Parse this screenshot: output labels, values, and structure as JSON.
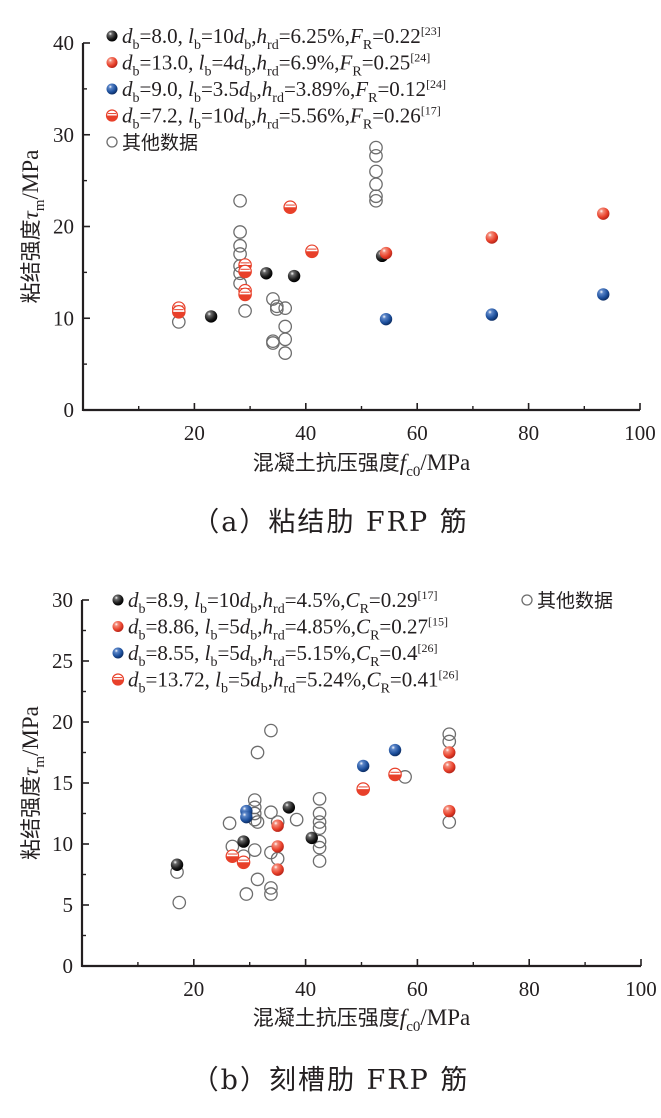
{
  "colors": {
    "black": "#1a1a1a",
    "red": "#e8402a",
    "blue": "#1c4f9c",
    "open": "#6d6d6d",
    "axis": "#231f20"
  },
  "chart_data": [
    {
      "type": "scatter",
      "id": "a",
      "caption": "（a）粘结肋 FRP 筋",
      "xlabel": "混凝土抗压强度f_c0/MPa",
      "xlabel_parts": {
        "main": "混凝土抗压强度",
        "var": "f",
        "sub": "c0",
        "unit": "/MPa"
      },
      "ylabel": "粘结强度τ_m/MPa",
      "ylabel_parts": {
        "main": "粘结强度",
        "var": "τ",
        "sub": "m",
        "unit": "/MPa"
      },
      "xlim": [
        0,
        100
      ],
      "ylim": [
        0,
        40
      ],
      "xticks": [
        20,
        40,
        60,
        80,
        100
      ],
      "xminor": [
        10,
        30,
        50,
        70,
        90
      ],
      "yticks": [
        0,
        10,
        20,
        30,
        40
      ],
      "yminor": [
        5,
        15,
        25,
        35
      ],
      "grid": false,
      "legend_position": "top-left",
      "series": [
        {
          "name": "d_b=8.0, l_b=10d_b, h_rd=6.25%, F_R=0.22[23]",
          "legend": {
            "d": "8.0",
            "l": "10",
            "h": "6.25%",
            "coef": "F",
            "coef_val": "0.22",
            "ref": "[23]"
          },
          "marker": "filled",
          "color_key": "black",
          "points": [
            [
              23.0,
              10.2
            ],
            [
              32.9,
              14.9
            ],
            [
              37.9,
              14.6
            ],
            [
              53.7,
              16.8
            ]
          ]
        },
        {
          "name": "d_b=13.0, l_b=4d_b, h_rd=6.9%, F_R=0.25[24]",
          "legend": {
            "d": "13.0",
            "l": "4",
            "h": "6.9%",
            "coef": "F",
            "coef_val": "0.25",
            "ref": "[24]"
          },
          "marker": "filled",
          "color_key": "red",
          "points": [
            [
              54.4,
              17.1
            ],
            [
              73.4,
              18.8
            ],
            [
              93.4,
              21.4
            ]
          ]
        },
        {
          "name": "d_b=9.0, l_b=3.5d_b, h_rd=3.89%, F_R=0.12[24]",
          "legend": {
            "d": "9.0",
            "l": "3.5",
            "h": "3.89%",
            "coef": "F",
            "coef_val": "0.12",
            "ref": "[24]"
          },
          "marker": "filled",
          "color_key": "blue",
          "points": [
            [
              54.4,
              9.9
            ],
            [
              73.4,
              10.4
            ],
            [
              93.4,
              12.6
            ]
          ]
        },
        {
          "name": "d_b=7.2, l_b=10d_b, h_rd=5.56%, F_R=0.26[17]",
          "legend": {
            "d": "7.2",
            "l": "10",
            "h": "5.56%",
            "coef": "F",
            "coef_val": "0.26",
            "ref": "[17]"
          },
          "marker": "half",
          "color_key": "red",
          "points": [
            [
              17.2,
              11.1
            ],
            [
              17.2,
              10.7
            ],
            [
              29.1,
              15.8
            ],
            [
              29.1,
              15.1
            ],
            [
              29.1,
              13.0
            ],
            [
              29.1,
              12.6
            ],
            [
              37.2,
              22.1
            ],
            [
              41.1,
              17.3
            ]
          ]
        },
        {
          "name": "其他数据",
          "legend": {
            "label": "其他数据"
          },
          "marker": "open",
          "color_key": "open",
          "points": [
            [
              17.2,
              9.6
            ],
            [
              28.2,
              22.8
            ],
            [
              28.2,
              19.4
            ],
            [
              28.2,
              17.9
            ],
            [
              28.2,
              17.0
            ],
            [
              28.2,
              15.7
            ],
            [
              28.2,
              14.9
            ],
            [
              28.2,
              13.8
            ],
            [
              29.1,
              10.8
            ],
            [
              34.1,
              12.1
            ],
            [
              34.8,
              11.3
            ],
            [
              34.8,
              11.0
            ],
            [
              36.3,
              11.1
            ],
            [
              36.3,
              9.1
            ],
            [
              34.1,
              7.5
            ],
            [
              34.1,
              7.3
            ],
            [
              36.3,
              7.7
            ],
            [
              36.3,
              6.2
            ],
            [
              52.6,
              28.6
            ],
            [
              52.6,
              27.7
            ],
            [
              52.6,
              26.0
            ],
            [
              52.6,
              24.6
            ],
            [
              52.6,
              23.3
            ],
            [
              52.6,
              22.8
            ]
          ]
        }
      ]
    },
    {
      "type": "scatter",
      "id": "b",
      "caption": "（b）刻槽肋 FRP 筋",
      "xlabel": "混凝土抗压强度f_c0/MPa",
      "xlabel_parts": {
        "main": "混凝土抗压强度",
        "var": "f",
        "sub": "c0",
        "unit": "/MPa"
      },
      "ylabel": "粘结强度τ_m/MPa",
      "ylabel_parts": {
        "main": "粘结强度",
        "var": "τ",
        "sub": "m",
        "unit": "/MPa"
      },
      "xlim": [
        0,
        100
      ],
      "ylim": [
        0,
        30
      ],
      "xticks": [
        20,
        40,
        60,
        80,
        100
      ],
      "xminor": [
        10,
        30,
        50,
        70,
        90
      ],
      "yticks": [
        0,
        5,
        10,
        15,
        20,
        25,
        30
      ],
      "yminor": [
        2.5,
        7.5,
        12.5,
        17.5,
        22.5,
        27.5
      ],
      "grid": false,
      "legend_position": "top",
      "series": [
        {
          "name": "d_b=8.9, l_b=10d_b, h_rd=4.5%, C_R=0.29[17]",
          "legend": {
            "d": "8.9",
            "l": "10",
            "h": "4.5%",
            "coef": "C",
            "coef_val": "0.29",
            "ref": "[17]"
          },
          "marker": "filled",
          "color_key": "black",
          "points": [
            [
              17.0,
              8.3
            ],
            [
              28.9,
              10.2
            ],
            [
              37.0,
              13.0
            ],
            [
              41.1,
              10.5
            ]
          ]
        },
        {
          "name": "d_b=8.86, l_b=5d_b, h_rd=4.85%, C_R=0.27[15]",
          "legend": {
            "d": "8.86",
            "l": "5",
            "h": "4.85%",
            "coef": "C",
            "coef_val": "0.27",
            "ref": "[15]"
          },
          "marker": "filled",
          "color_key": "red",
          "points": [
            [
              35.0,
              11.5
            ],
            [
              35.0,
              9.8
            ],
            [
              35.0,
              7.9
            ],
            [
              65.7,
              17.5
            ],
            [
              65.7,
              16.3
            ],
            [
              65.7,
              12.7
            ]
          ]
        },
        {
          "name": "d_b=8.55, l_b=5d_b, h_rd=5.15%, C_R=0.4[26]",
          "legend": {
            "d": "8.55",
            "l": "5",
            "h": "5.15%",
            "coef": "C",
            "coef_val": "0.4",
            "ref": "[26]"
          },
          "marker": "filled",
          "color_key": "blue",
          "points": [
            [
              29.4,
              12.7
            ],
            [
              29.4,
              12.2
            ],
            [
              50.3,
              16.4
            ],
            [
              56.0,
              17.7
            ]
          ]
        },
        {
          "name": "d_b=13.72, l_b=5d_b, h_rd=5.24%, C_R=0.41[26]",
          "legend": {
            "d": "13.72",
            "l": "5",
            "h": "5.24%",
            "coef": "C",
            "coef_val": "0.41",
            "ref": "[26]"
          },
          "marker": "half",
          "color_key": "red",
          "points": [
            [
              26.9,
              9.0
            ],
            [
              28.9,
              8.5
            ],
            [
              50.3,
              14.5
            ],
            [
              56.0,
              15.7
            ]
          ]
        },
        {
          "name": "其他数据",
          "legend": {
            "label": "其他数据"
          },
          "marker": "open",
          "color_key": "open",
          "points": [
            [
              17.0,
              7.7
            ],
            [
              17.4,
              5.2
            ],
            [
              26.4,
              11.7
            ],
            [
              26.9,
              9.8
            ],
            [
              28.9,
              9.0
            ],
            [
              29.4,
              5.9
            ],
            [
              30.9,
              13.6
            ],
            [
              30.9,
              13.0
            ],
            [
              30.9,
              12.5
            ],
            [
              30.9,
              12.0
            ],
            [
              31.4,
              11.8
            ],
            [
              30.9,
              9.5
            ],
            [
              31.4,
              17.5
            ],
            [
              31.4,
              7.1
            ],
            [
              33.8,
              19.3
            ],
            [
              33.8,
              12.6
            ],
            [
              33.8,
              9.3
            ],
            [
              33.8,
              6.4
            ],
            [
              33.8,
              5.9
            ],
            [
              35.0,
              11.8
            ],
            [
              35.0,
              8.8
            ],
            [
              38.4,
              12.0
            ],
            [
              42.5,
              13.7
            ],
            [
              42.5,
              12.5
            ],
            [
              42.5,
              11.8
            ],
            [
              42.5,
              11.3
            ],
            [
              42.5,
              10.2
            ],
            [
              42.5,
              9.7
            ],
            [
              42.5,
              8.6
            ],
            [
              57.8,
              15.5
            ],
            [
              65.7,
              19.0
            ],
            [
              65.7,
              18.4
            ],
            [
              65.7,
              11.8
            ]
          ]
        }
      ]
    }
  ]
}
